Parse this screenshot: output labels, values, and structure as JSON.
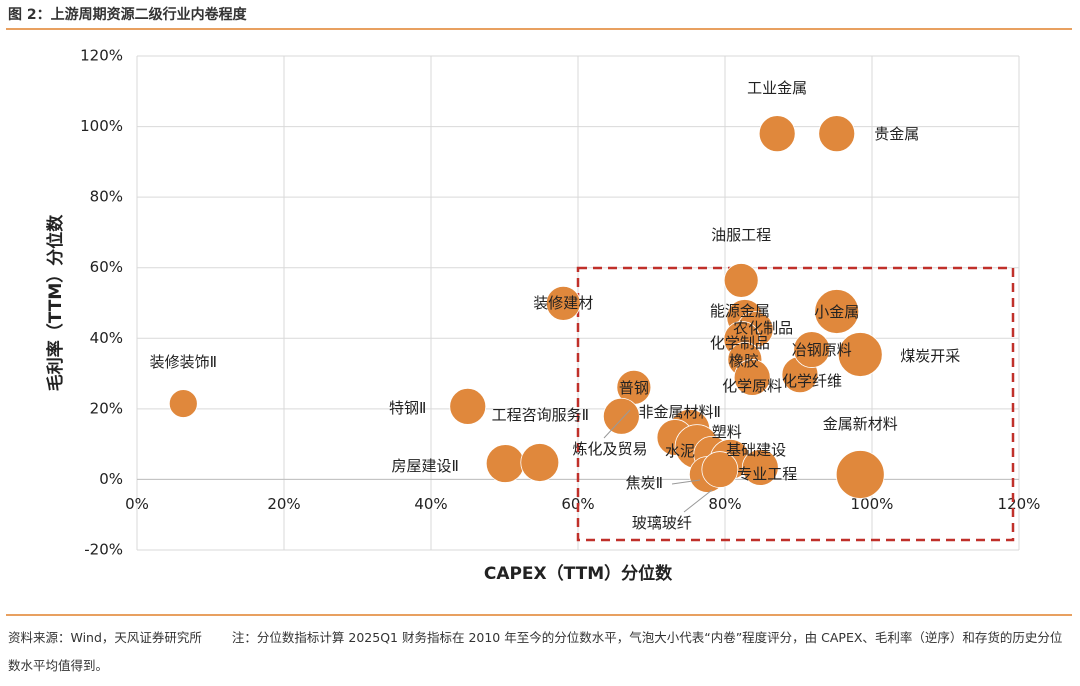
{
  "header": {
    "title": "图 2：上游周期资源二级行业内卷程度"
  },
  "chart_data": {
    "type": "bubble",
    "x_label": "CAPEX（TTM）分位数",
    "y_label": "毛利率（TTM）分位数",
    "color": "#e0883c",
    "grid": true,
    "xlim": [
      0,
      120
    ],
    "ylim": [
      -20,
      120
    ],
    "xticks": [
      {
        "value": 0,
        "label": "0%"
      },
      {
        "value": 20,
        "label": "20%"
      },
      {
        "value": 40,
        "label": "40%"
      },
      {
        "value": 60,
        "label": "60%"
      },
      {
        "value": 80,
        "label": "80%"
      },
      {
        "value": 100,
        "label": "100%"
      },
      {
        "value": 120,
        "label": "120%"
      }
    ],
    "yticks": [
      {
        "value": -20,
        "label": "-20%"
      },
      {
        "value": 0,
        "label": "0%"
      },
      {
        "value": 20,
        "label": "20%"
      },
      {
        "value": 40,
        "label": "40%"
      },
      {
        "value": 60,
        "label": "60%"
      },
      {
        "value": 80,
        "label": "80%"
      },
      {
        "value": 100,
        "label": "100%"
      },
      {
        "value": 120,
        "label": "120%"
      }
    ],
    "categories": [
      "装修装饰Ⅱ",
      "特钢Ⅱ",
      "房屋建设Ⅱ",
      null,
      "装修建材",
      "普钢",
      "工程咨询服务Ⅱ",
      "非金属材料Ⅱ",
      "炼化及贸易",
      "水泥",
      "塑料",
      "基础建设",
      "焦炭Ⅱ",
      "玻璃玻纤",
      "专业工程",
      "油服工程",
      "能源金属",
      "农化制品",
      "化学制品",
      "橡胶",
      "化学原料",
      "化学纤维",
      "冶钢原料",
      "小金属",
      "煤炭开采",
      "金属新材料",
      "工业金属",
      "贵金属"
    ],
    "x": [
      6.3,
      45.0,
      50.1,
      54.8,
      58.0,
      67.6,
      65.9,
      75.2,
      73.2,
      76.2,
      78.2,
      80.7,
      77.6,
      79.3,
      84.8,
      82.2,
      82.7,
      84.1,
      82.3,
      82.7,
      83.7,
      90.2,
      91.8,
      95.2,
      98.4,
      98.4,
      87.1,
      95.2
    ],
    "values": [
      21.5,
      20.7,
      4.5,
      4.8,
      49.9,
      26.1,
      17.9,
      14.2,
      11.9,
      9.3,
      7.1,
      5.7,
      1.4,
      2.8,
      3.4,
      56.4,
      45.9,
      42.5,
      39.7,
      34.0,
      28.9,
      29.7,
      36.8,
      47.6,
      35.4,
      1.4,
      98.0,
      98.0
    ],
    "sizes": [
      14,
      18,
      19,
      19,
      17,
      17,
      18,
      20,
      18,
      22,
      18,
      20,
      18,
      18,
      18,
      17,
      18,
      18,
      18,
      17,
      18,
      18,
      18,
      22,
      22,
      24,
      18,
      18
    ]
  },
  "footer": {
    "source": "资料来源：Wind，天风证券研究所",
    "note": "注：分位数指标计算 2025Q1 财务指标在 2010 年至今的分位数水平，气泡大小代表“内卷”程度评分，由 CAPEX、毛利率（逆序）和存货的历史分位数水平均值得到。"
  }
}
